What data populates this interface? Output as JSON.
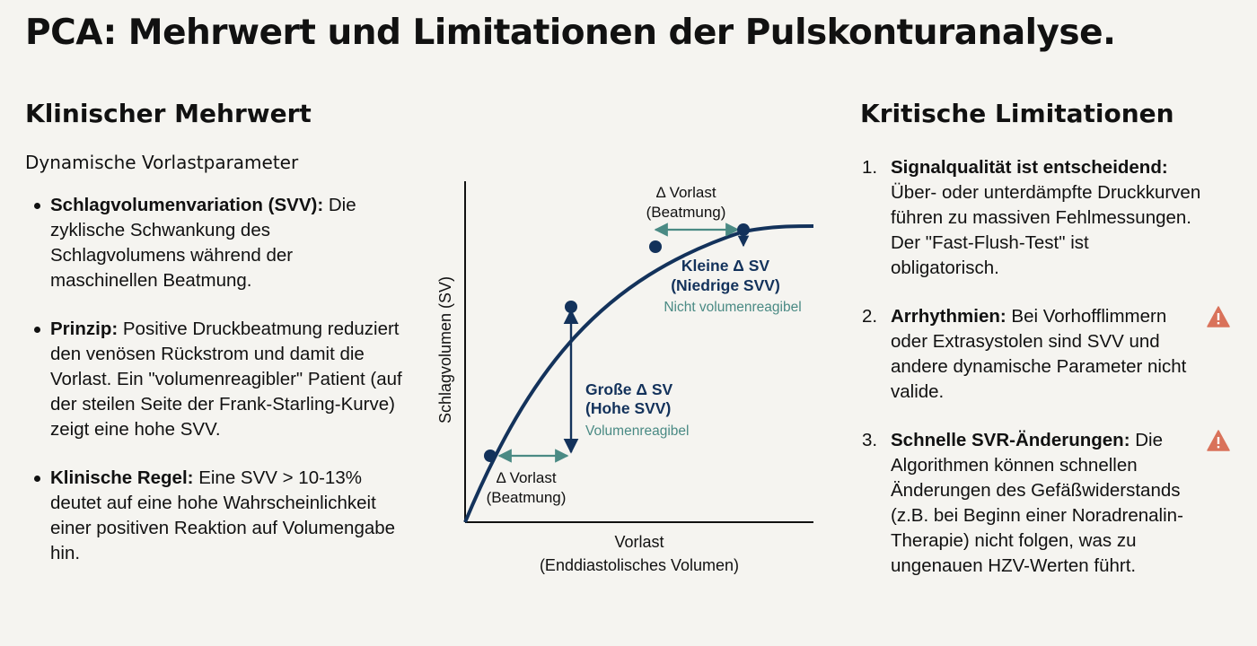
{
  "title": "PCA: Mehrwert und Limitationen der Pulskonturanalyse.",
  "left": {
    "heading": "Klinischer Mehrwert",
    "subheading": "Dynamische Vorlastparameter",
    "bullets": [
      {
        "term": "Schlagvolumenvariation (SVV):",
        "text": " Die zyklische Schwankung des Schlagvolumens während der maschinellen Beatmung."
      },
      {
        "term": "Prinzip:",
        "text": " Positive Druckbeatmung reduziert den venösen Rückstrom und damit die Vorlast. Ein \"volumenreagibler\" Patient (auf der steilen Seite der Frank-Starling-Kurve) zeigt eine hohe SVV."
      },
      {
        "term": "Klinische Regel:",
        "text": " Eine SVV > 10-13% deutet auf eine hohe Wahrscheinlichkeit einer positiven Reaktion auf Volumengabe hin."
      }
    ]
  },
  "diagram": {
    "ylabel": "Schlagvolumen (SV)",
    "xlabel_line1": "Vorlast",
    "xlabel_line2": "(Enddiastolisches Volumen)",
    "low_delta_line1": "Δ Vorlast",
    "low_delta_line2": "(Beatmung)",
    "high_delta_line1": "Δ Vorlast",
    "high_delta_line2": "(Beatmung)",
    "big_sv_line1": "Große Δ SV",
    "big_sv_line2": "(Hohe SVV)",
    "big_sv_note": "Volumenreagibel",
    "small_sv_line1": "Kleine Δ SV",
    "small_sv_line2": "(Niedrige SVV)",
    "small_sv_note": "Nicht volumenreagibel",
    "colors": {
      "curve": "#13325b",
      "accent": "#4a8a84",
      "axis": "#111111"
    }
  },
  "right": {
    "heading": "Kritische Limitationen",
    "items": [
      {
        "num": "1.",
        "term": "Signalqualität ist entscheidend:",
        "text": " Über- oder unterdämpfte Druckkurven führen zu massiven Fehlmessungen. Der \"Fast-Flush-Test\" ist obligatorisch.",
        "icon": "none"
      },
      {
        "num": "2.",
        "term": "Arrhythmien:",
        "text": " Bei Vorhofflimmern oder Extrasystolen sind SVV und andere dynamische Parameter nicht valide.",
        "icon": "warning-icon"
      },
      {
        "num": "3.",
        "term": "Schnelle SVR-Änderungen:",
        "text": " Die Algorithmen können schnellen Änderungen des Gefäßwiderstands (z.B. bei Beginn einer Noradrenalin-Therapie) nicht folgen, was zu ungenauen HZV-Werten führt.",
        "icon": "warning-icon"
      }
    ],
    "warning_color": "#d9725a"
  }
}
